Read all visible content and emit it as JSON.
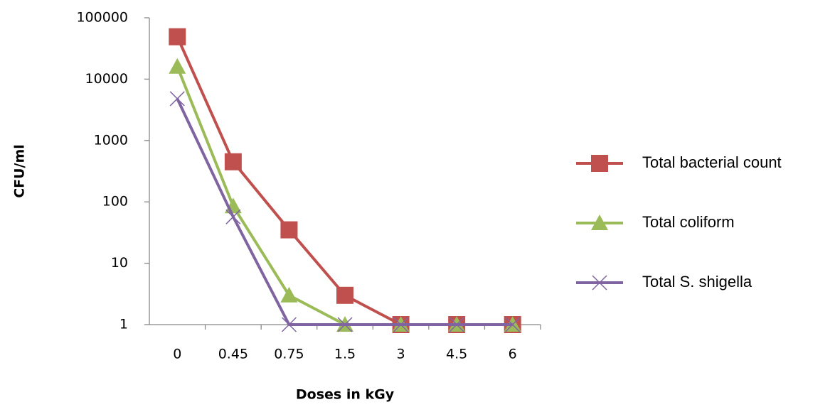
{
  "chart_data": {
    "type": "line",
    "y_label": "CFU/ml",
    "x_label": "Doses in kGy",
    "categories": [
      "0",
      "0.45",
      "0.75",
      "1.5",
      "3",
      "4.5",
      "6"
    ],
    "series": [
      {
        "name": "Total bacterial count",
        "color": "#c0504d",
        "marker": "square",
        "values": [
          49000,
          450,
          35,
          3,
          1,
          1,
          1
        ]
      },
      {
        "name": "Total coliform",
        "color": "#9bbb59",
        "marker": "triangle",
        "values": [
          16000,
          85,
          3,
          1,
          1,
          1,
          1
        ]
      },
      {
        "name": "Total S. shigella",
        "color": "#8064a2",
        "marker": "x",
        "values": [
          4800,
          57,
          1,
          1,
          1,
          1,
          1
        ]
      }
    ],
    "log_scale": true,
    "ylim": [
      1,
      100000
    ],
    "yticks": [
      1,
      10,
      100,
      1000,
      10000,
      100000
    ],
    "grid": false,
    "legend": "right"
  }
}
